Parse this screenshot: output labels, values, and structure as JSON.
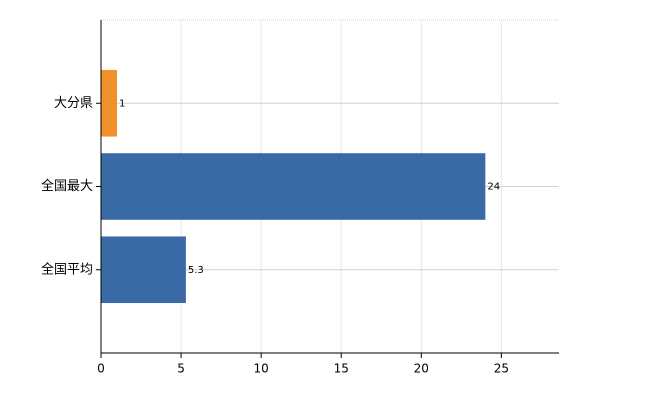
{
  "chart_data": {
    "type": "bar",
    "orientation": "horizontal",
    "categories": [
      "大分県",
      "全国最大",
      "全国平均"
    ],
    "values": [
      1,
      24,
      5.3
    ],
    "colors": [
      "#f0912b",
      "#3a6aa5",
      "#3a6aa5"
    ],
    "xlim": [
      0,
      28.6
    ],
    "xticks": [
      0,
      5,
      10,
      15,
      20,
      25
    ],
    "grid": true
  }
}
